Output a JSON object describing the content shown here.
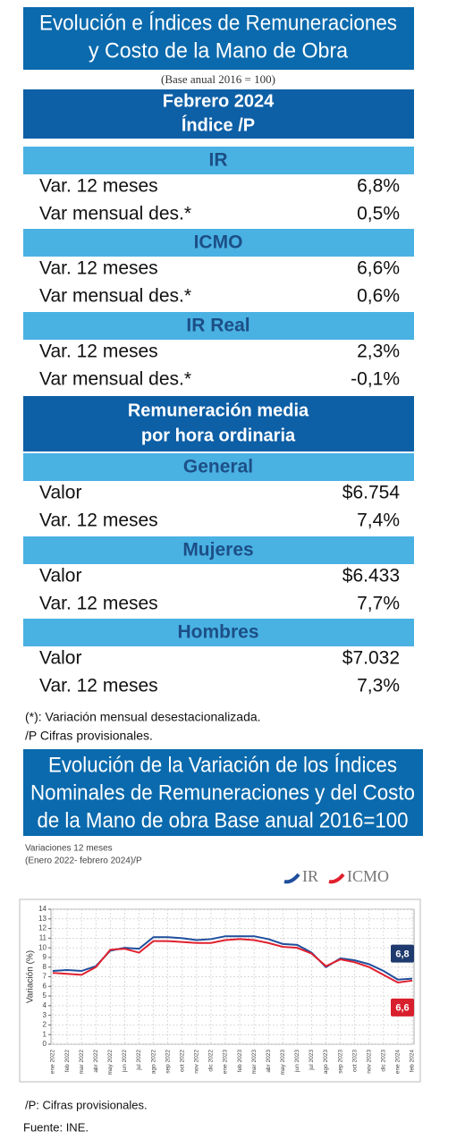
{
  "header": {
    "title_lines": [
      "Evolución e Índices de Remuneraciones",
      "y Costo de la Mano de Obra"
    ],
    "base": "(Base anual 2016 = 100)",
    "period": "Febrero 2024",
    "subtitle": "Índice /P"
  },
  "sections": [
    {
      "title": "IR",
      "rows": [
        [
          "Var. 12 meses",
          "6,8%"
        ],
        [
          "Var mensual des.*",
          "0,5%"
        ]
      ]
    },
    {
      "title": "ICMO",
      "rows": [
        [
          "Var. 12 meses",
          "6,6%"
        ],
        [
          "Var mensual des.*",
          "0,6%"
        ]
      ]
    },
    {
      "title": "IR Real",
      "rows": [
        [
          "Var. 12 meses",
          "2,3%"
        ],
        [
          "Var mensual des.*",
          "-0,1%"
        ]
      ]
    }
  ],
  "group_title_lines": [
    "Remuneración media",
    "por hora ordinaria"
  ],
  "groups": [
    {
      "title": "General",
      "rows": [
        [
          "Valor",
          "$6.754"
        ],
        [
          "Var. 12 meses",
          "7,4%"
        ]
      ]
    },
    {
      "title": "Mujeres",
      "rows": [
        [
          "Valor",
          "$6.433"
        ],
        [
          "Var. 12 meses",
          "7,7%"
        ]
      ]
    },
    {
      "title": "Hombres",
      "rows": [
        [
          "Valor",
          "$7.032"
        ],
        [
          "Var. 12 meses",
          "7,3%"
        ]
      ]
    }
  ],
  "notes": [
    "(*): Variación mensual desestacionalizada.",
    "/P Cifras provisionales."
  ],
  "chart_title_lines": [
    "Evolución de la Variación de los Índices",
    "Nominales de Remuneraciones y del Costo",
    "de la Mano de obra Base anual 2016=100"
  ],
  "chart_data": {
    "type": "line",
    "subtitle_lines": [
      "Variaciones 12 meses",
      "(Enero 2022- febrero 2024)/P"
    ],
    "y_label": "Variación (%)",
    "categories": [
      "ene 2022",
      "feb 2022",
      "mar 2022",
      "abr 2022",
      "may 2022",
      "jun 2022",
      "jul 2022",
      "ago 2022",
      "sep 2022",
      "oct 2022",
      "nov 2022",
      "dic 2022",
      "ene 2023",
      "feb 2023",
      "mar 2023",
      "abr 2023",
      "may 2023",
      "jun 2023",
      "jul 2023",
      "ago 2023",
      "sep 2023",
      "oct 2023",
      "nov 2023",
      "dic 2023",
      "ene 2024",
      "feb 2024"
    ],
    "series": [
      {
        "name": "IR",
        "color": "#1f4e9c",
        "values": [
          7.6,
          7.7,
          7.6,
          8.1,
          9.7,
          10.0,
          9.9,
          11.1,
          11.1,
          11.0,
          10.8,
          10.9,
          11.2,
          11.2,
          11.2,
          10.9,
          10.4,
          10.3,
          9.5,
          8.0,
          8.9,
          8.7,
          8.3,
          7.6,
          6.7,
          6.8
        ],
        "value_labels": [
          null,
          null,
          null,
          null,
          null,
          null,
          null,
          null,
          null,
          null,
          null,
          null,
          null,
          null,
          null,
          null,
          null,
          null,
          null,
          null,
          null,
          null,
          null,
          null,
          null,
          "6,8"
        ]
      },
      {
        "name": "ICMO",
        "color": "#e0202e",
        "values": [
          7.4,
          7.3,
          7.2,
          8.0,
          9.8,
          9.9,
          9.5,
          10.7,
          10.7,
          10.6,
          10.5,
          10.5,
          10.8,
          10.9,
          10.8,
          10.5,
          10.1,
          10.0,
          9.4,
          8.1,
          8.8,
          8.5,
          8.0,
          7.2,
          6.4,
          6.6
        ],
        "value_labels": [
          null,
          null,
          null,
          null,
          null,
          null,
          null,
          null,
          null,
          null,
          null,
          null,
          null,
          null,
          null,
          null,
          null,
          null,
          null,
          null,
          null,
          null,
          null,
          null,
          null,
          "6,6"
        ]
      }
    ],
    "ylim": [
      0,
      14
    ],
    "yticks": [
      0,
      1,
      2,
      3,
      4,
      5,
      6,
      7,
      8,
      9,
      10,
      11,
      12,
      13,
      14
    ],
    "grid": true,
    "legend": "top-right"
  },
  "chart_note": "/P:   Cifras provisionales.",
  "source": "Fuente: INE."
}
